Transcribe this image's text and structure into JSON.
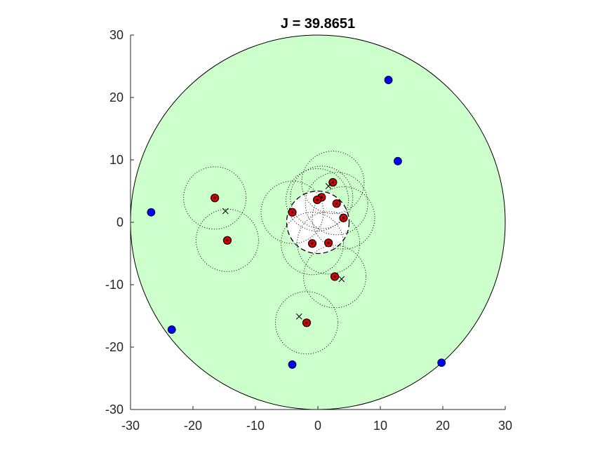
{
  "chart_data": {
    "type": "scatter",
    "title": "J = 39.8651",
    "xlabel": "",
    "ylabel": "",
    "xlim": [
      -30,
      30
    ],
    "ylim": [
      -30,
      30
    ],
    "x_ticks": [
      -30,
      -20,
      -10,
      0,
      10,
      20,
      30
    ],
    "y_ticks": [
      -30,
      -20,
      -10,
      0,
      10,
      20,
      30
    ],
    "x_tick_labels": [
      "-30",
      "-20",
      "-10",
      "0",
      "10",
      "20",
      "30"
    ],
    "y_tick_labels": [
      "-30",
      "-20",
      "-10",
      "0",
      "10",
      "20",
      "30"
    ],
    "aspect": "equal",
    "grid": false,
    "legend": false,
    "region": {
      "shape": "circle",
      "center": [
        0,
        0
      ],
      "radius": 30,
      "fill": "#ccffcc",
      "edge": "#000000"
    },
    "inner_region": {
      "shape": "circle",
      "center": [
        0,
        0
      ],
      "radius": 5,
      "fill": "#ffffff",
      "edge": "#000000",
      "linestyle": "dashed"
    },
    "dotted_circle_radius": 5,
    "series": [
      {
        "marker": "filled-circle",
        "color": "#0000ff",
        "points": [
          [
            11.3,
            22.8
          ],
          [
            12.8,
            9.8
          ],
          [
            -26.7,
            1.6
          ],
          [
            -23.4,
            -17.2
          ],
          [
            -4.1,
            -22.8
          ],
          [
            19.8,
            -22.5
          ]
        ]
      },
      {
        "marker": "circle-with-dot",
        "color": "#dd0000",
        "points": [
          [
            2.4,
            6.4
          ],
          [
            0.6,
            4.0
          ],
          [
            -0.1,
            3.6
          ],
          [
            3.0,
            3.0
          ],
          [
            -4.1,
            1.6
          ],
          [
            4.1,
            0.7
          ],
          [
            -0.9,
            -3.4
          ],
          [
            1.7,
            -3.3
          ],
          [
            2.7,
            -8.7
          ],
          [
            -1.8,
            -16.1
          ],
          [
            -16.5,
            3.9
          ],
          [
            -14.5,
            -2.9
          ]
        ]
      },
      {
        "marker": "x",
        "color": "#000000",
        "points": [
          [
            1.7,
            5.8
          ],
          [
            3.8,
            -9.1
          ],
          [
            -3.0,
            -15.1
          ],
          [
            -14.8,
            1.8
          ]
        ]
      }
    ]
  }
}
